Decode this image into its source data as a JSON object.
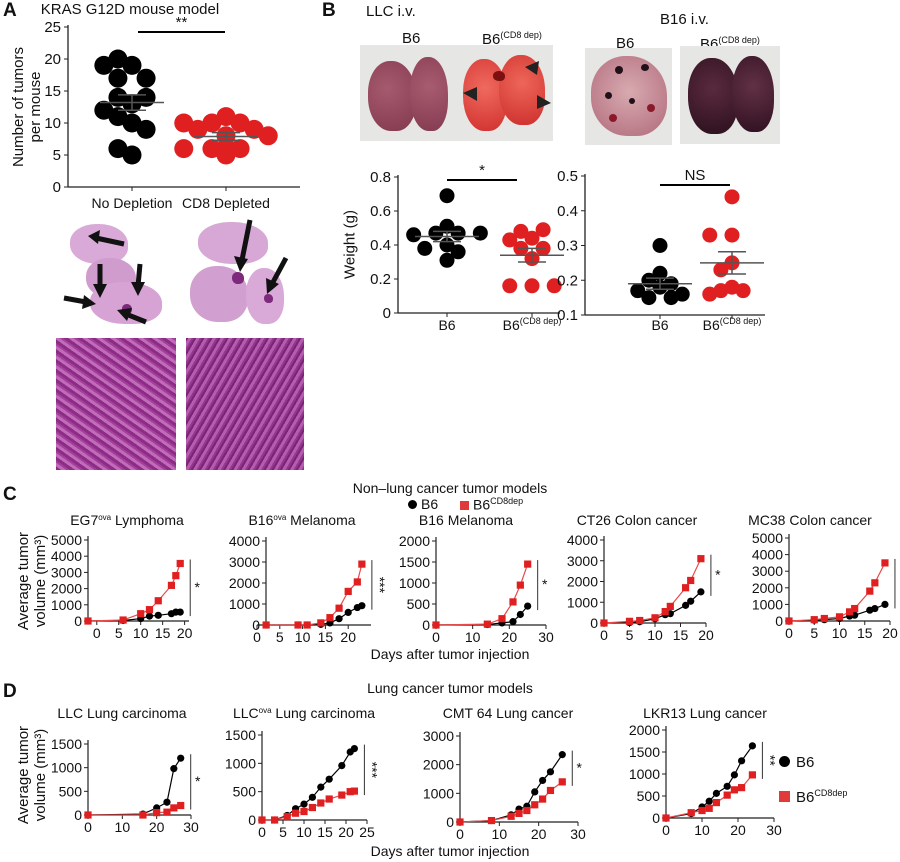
{
  "figure": {
    "panel_labels": {
      "a": "A",
      "b": "B",
      "c": "C",
      "d": "D"
    },
    "panel_b": {
      "llc_title": "LLC i.v.",
      "b16_title": "B16 i.v.",
      "photo_labels": [
        {
          "text": "B6"
        },
        {
          "text": "B6",
          "sup": "(CD8 dep)"
        }
      ]
    },
    "panel_c": {
      "title": "Non–lung cancer tumor models",
      "xlabel": "Days after tumor injection",
      "ylabel": "Average tumor volume (mm³)",
      "legend": [
        {
          "text": "B6",
          "marker": "circle"
        },
        {
          "text": "B6",
          "sup": "CD8dep",
          "marker": "square"
        }
      ]
    },
    "panel_d": {
      "title": "Lung cancer tumor models",
      "xlabel": "Days after tumor injection",
      "ylabel": "Average tumor volume (mm³)",
      "legend": [
        {
          "text": "B6",
          "marker": "circle"
        },
        {
          "text": "B6",
          "sup": "CD8dep",
          "marker": "square"
        }
      ]
    },
    "colors": {
      "b6": "#000000",
      "cd8dep": "#e02020",
      "cd8dep_line": "#e84a4a"
    }
  },
  "chart_data": [
    {
      "id": "A",
      "type": "scatter",
      "title": "KRAS G12D mouse model",
      "ylabel": "Number of tumors per mouse",
      "categories": [
        {
          "text": "No Depletion"
        },
        {
          "text": "CD8 Depleted"
        }
      ],
      "ylim": [
        0,
        25
      ],
      "yticks": [
        "0",
        "5",
        "10",
        "15",
        "20",
        "25"
      ],
      "series": [
        {
          "values": [
            19,
            20,
            19,
            17,
            17,
            13,
            14,
            14,
            12,
            11,
            10,
            9,
            5,
            6
          ],
          "mean": 13.2,
          "sem": 1.2
        },
        {
          "values": [
            11,
            10,
            10,
            10,
            9,
            9,
            8,
            8,
            6,
            6,
            6,
            5,
            6
          ],
          "mean": 7.9,
          "sem": 0.6
        }
      ],
      "significance": "**"
    },
    {
      "id": "B_LLC",
      "type": "scatter",
      "ylabel": "Weight (g)",
      "categories": [
        {
          "text": "B6"
        },
        {
          "text": "B6",
          "sup": "(CD8 dep)"
        }
      ],
      "ylim": [
        0,
        0.8
      ],
      "yticks": [
        "0",
        "0.2",
        "0.4",
        "0.6",
        "0.8"
      ],
      "series": [
        {
          "values": [
            0.69,
            0.51,
            0.47,
            0.47,
            0.46,
            0.47,
            0.4,
            0.38,
            0.36,
            0.31
          ],
          "mean": 0.45,
          "sem": 0.03
        },
        {
          "values": [
            0.44,
            0.43,
            0.48,
            0.49,
            0.38,
            0.38,
            0.32,
            0.16,
            0.16,
            0.16
          ],
          "mean": 0.34,
          "sem": 0.04
        }
      ],
      "significance": "*"
    },
    {
      "id": "B_B16",
      "type": "scatter",
      "categories": [
        {
          "text": "B6"
        },
        {
          "text": "B6",
          "sup": "(CD8 dep)"
        }
      ],
      "ylim": [
        0.1,
        0.5
      ],
      "yticks": [
        "0.1",
        "0.2",
        "0.3",
        "0.4",
        "0.5"
      ],
      "series": [
        {
          "values": [
            0.3,
            0.22,
            0.2,
            0.18,
            0.19,
            0.15,
            0.15,
            0.17,
            0.16
          ],
          "mean": 0.19,
          "sem": 0.016
        },
        {
          "values": [
            0.44,
            0.33,
            0.33,
            0.25,
            0.23,
            0.18,
            0.17,
            0.17,
            0.16
          ],
          "mean": 0.25,
          "sem": 0.032
        }
      ],
      "significance": "NS"
    },
    {
      "id": "C1",
      "type": "line",
      "title_parts": [
        "EG7",
        "ova",
        " Lymphoma"
      ],
      "xlim": [
        -2,
        21
      ],
      "xticks": [
        0,
        5,
        10,
        15,
        20
      ],
      "ylim": [
        0,
        5000
      ],
      "yticks": [
        0,
        1000,
        2000,
        3000,
        4000,
        5000
      ],
      "x": [
        -2,
        6,
        10,
        12,
        14,
        17,
        18,
        19
      ],
      "series": [
        {
          "name": "B6",
          "values": [
            0,
            30,
            150,
            300,
            350,
            450,
            550,
            550
          ]
        },
        {
          "name": "B6CD8dep",
          "values": [
            0,
            60,
            450,
            700,
            1250,
            2200,
            2800,
            3550
          ]
        }
      ],
      "significance": "*"
    },
    {
      "id": "C2",
      "type": "line",
      "title_parts": [
        "B16",
        "ova",
        " Melanoma"
      ],
      "xlim": [
        0,
        25
      ],
      "xticks": [
        0,
        5,
        10,
        15,
        20
      ],
      "ylim": [
        0,
        4000
      ],
      "yticks": [
        0,
        1000,
        2000,
        3000,
        4000
      ],
      "x": [
        2,
        9,
        11,
        14,
        16,
        18,
        20,
        22,
        23
      ],
      "series": [
        {
          "name": "B6",
          "values": [
            0,
            0,
            0,
            30,
            100,
            300,
            600,
            830,
            920
          ]
        },
        {
          "name": "B6CD8dep",
          "values": [
            0,
            0,
            0,
            100,
            350,
            800,
            1600,
            2050,
            2900
          ]
        }
      ],
      "significance": "***"
    },
    {
      "id": "C3",
      "type": "line",
      "title_parts": [
        "B16 Melanoma",
        "",
        ""
      ],
      "xlim": [
        0,
        30
      ],
      "xticks": [
        0,
        10,
        20,
        30
      ],
      "ylim": [
        0,
        2000
      ],
      "yticks": [
        0,
        500,
        1000,
        1500,
        2000
      ],
      "x": [
        0,
        14,
        18,
        21,
        23,
        25
      ],
      "series": [
        {
          "name": "B6",
          "values": [
            0,
            10,
            50,
            80,
            250,
            450
          ]
        },
        {
          "name": "B6CD8dep",
          "values": [
            0,
            20,
            150,
            550,
            950,
            1450
          ]
        }
      ],
      "significance": "*"
    },
    {
      "id": "C4",
      "type": "line",
      "title_parts": [
        "CT26 Colon cancer",
        "",
        ""
      ],
      "xlim": [
        0,
        20
      ],
      "xticks": [
        0,
        5,
        10,
        15,
        20
      ],
      "ylim": [
        0,
        4000
      ],
      "yticks": [
        0,
        1000,
        2000,
        3000,
        4000
      ],
      "x": [
        0,
        5,
        7,
        10,
        12,
        13,
        16,
        17,
        19
      ],
      "series": [
        {
          "name": "B6",
          "values": [
            0,
            20,
            60,
            200,
            400,
            450,
            850,
            1050,
            1500
          ]
        },
        {
          "name": "B6CD8dep",
          "values": [
            0,
            80,
            120,
            250,
            550,
            800,
            1700,
            2050,
            3100
          ]
        }
      ],
      "significance": "*"
    },
    {
      "id": "C5",
      "type": "line",
      "title_parts": [
        "MC38 Colon cancer",
        "",
        ""
      ],
      "xlim": [
        0,
        20
      ],
      "xticks": [
        0,
        5,
        10,
        15,
        20
      ],
      "ylim": [
        0,
        5000
      ],
      "yticks": [
        0,
        1000,
        2000,
        3000,
        4000,
        5000
      ],
      "x": [
        0,
        5,
        7,
        10,
        12,
        13,
        16,
        17,
        19
      ],
      "series": [
        {
          "name": "B6",
          "values": [
            0,
            50,
            80,
            150,
            300,
            350,
            650,
            750,
            1000
          ]
        },
        {
          "name": "B6CD8dep",
          "values": [
            0,
            80,
            150,
            250,
            550,
            750,
            1800,
            2300,
            3500
          ]
        }
      ],
      "significance": "***"
    },
    {
      "id": "D1",
      "type": "line",
      "title_parts": [
        "LLC Lung carcinoma",
        "",
        ""
      ],
      "xlim": [
        0,
        30
      ],
      "xticks": [
        0,
        10,
        20,
        30
      ],
      "ylim": [
        0,
        1500
      ],
      "yticks": [
        0,
        500,
        1000,
        1500
      ],
      "x": [
        0,
        16,
        20,
        23,
        25,
        27
      ],
      "series": [
        {
          "name": "B6",
          "values": [
            0,
            20,
            150,
            270,
            980,
            1200
          ]
        },
        {
          "name": "B6CD8dep",
          "values": [
            0,
            0,
            50,
            60,
            150,
            200
          ]
        }
      ],
      "significance": "*"
    },
    {
      "id": "D2",
      "type": "line",
      "title_parts": [
        "LLC",
        "ova",
        " Lung carcinoma"
      ],
      "xlim": [
        0,
        25
      ],
      "xticks": [
        0,
        5,
        10,
        15,
        20,
        25
      ],
      "ylim": [
        0,
        1500
      ],
      "yticks": [
        0,
        500,
        1000,
        1500
      ],
      "x": [
        0,
        3,
        6,
        8,
        10,
        12,
        14,
        16,
        19,
        21,
        22
      ],
      "series": [
        {
          "name": "B6",
          "values": [
            0,
            0,
            80,
            200,
            280,
            400,
            580,
            720,
            960,
            1200,
            1260
          ]
        },
        {
          "name": "B6CD8dep",
          "values": [
            0,
            0,
            60,
            120,
            150,
            220,
            300,
            370,
            440,
            500,
            510
          ]
        }
      ],
      "significance": "***"
    },
    {
      "id": "D3",
      "type": "line",
      "title_parts": [
        "CMT 64 Lung cancer",
        "",
        ""
      ],
      "xlim": [
        0,
        30
      ],
      "xticks": [
        0,
        10,
        20,
        30
      ],
      "ylim": [
        0,
        3000
      ],
      "yticks": [
        0,
        1000,
        2000,
        3000
      ],
      "x": [
        0,
        8,
        13,
        15,
        17,
        19,
        21,
        23,
        26
      ],
      "series": [
        {
          "name": "B6",
          "values": [
            0,
            50,
            250,
            450,
            550,
            1050,
            1450,
            1750,
            2350
          ]
        },
        {
          "name": "B6CD8dep",
          "values": [
            0,
            50,
            200,
            300,
            400,
            600,
            800,
            1100,
            1400
          ]
        }
      ],
      "significance": "*"
    },
    {
      "id": "D4",
      "type": "line",
      "title_parts": [
        "LKR13 Lung cancer",
        "",
        ""
      ],
      "xlim": [
        0,
        30
      ],
      "xticks": [
        0,
        10,
        20,
        30
      ],
      "ylim": [
        0,
        2000
      ],
      "yticks": [
        0,
        500,
        1000,
        1500,
        2000
      ],
      "x": [
        0,
        7,
        10,
        12,
        14,
        17,
        19,
        21,
        24
      ],
      "series": [
        {
          "name": "B6",
          "values": [
            0,
            100,
            250,
            380,
            560,
            720,
            980,
            1300,
            1640
          ]
        },
        {
          "name": "B6CD8dep",
          "values": [
            0,
            120,
            170,
            220,
            350,
            520,
            640,
            690,
            980
          ]
        }
      ],
      "significance": "**"
    }
  ]
}
